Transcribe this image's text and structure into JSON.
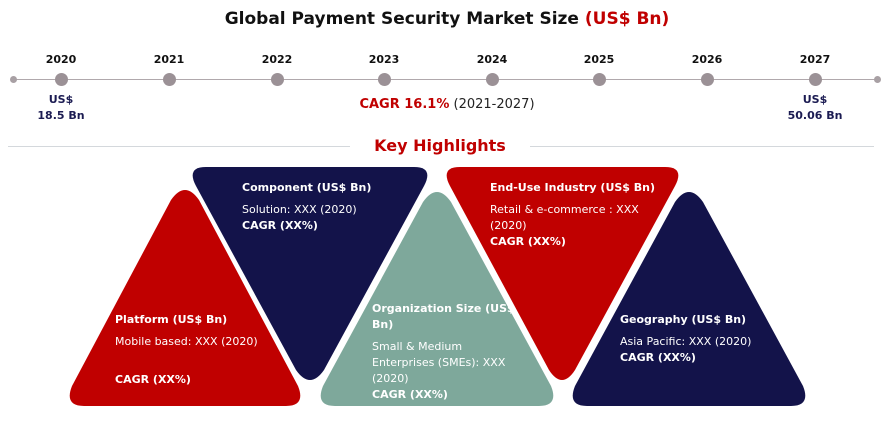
{
  "header": {
    "title_main": "Global Payment Security Market Size",
    "title_unit": "(US$ Bn)"
  },
  "timeline": {
    "years": [
      "2020",
      "2021",
      "2022",
      "2023",
      "2024",
      "2025",
      "2026",
      "2027"
    ],
    "start_value": {
      "unit": "US$",
      "amount": "18.5 Bn"
    },
    "end_value": {
      "unit": "US$",
      "amount": "50.06 Bn"
    },
    "cagr_label": "CAGR 16.1%",
    "cagr_period": "(2021-2027)"
  },
  "highlights": {
    "title": "Key Highlights",
    "component": {
      "heading": "Component (US$ Bn)",
      "detail": "Solution: XXX (2020)",
      "cagr": "CAGR (XX%)"
    },
    "platform": {
      "heading": "Platform (US$ Bn)",
      "detail": "Mobile based: XXX (2020)",
      "cagr": "CAGR (XX%)"
    },
    "organization": {
      "heading": "Organization Size (US$ Bn)",
      "detail": "Small & Medium Enterprises (SMEs): XXX (2020)",
      "cagr": "CAGR (XX%)"
    },
    "end_use": {
      "heading": "End-Use Industry (US$ Bn)",
      "detail": "Retail & e-commerce : XXX (2020)",
      "cagr": "CAGR (XX%)"
    },
    "geography": {
      "heading": "Geography (US$ Bn)",
      "detail": "Asia Pacific: XXX (2020)",
      "cagr": "CAGR (XX%)"
    }
  },
  "colors": {
    "red": "#c00000",
    "navy": "#13134a",
    "teal": "#7ea89b",
    "timeline_dot": "#9b9196"
  }
}
